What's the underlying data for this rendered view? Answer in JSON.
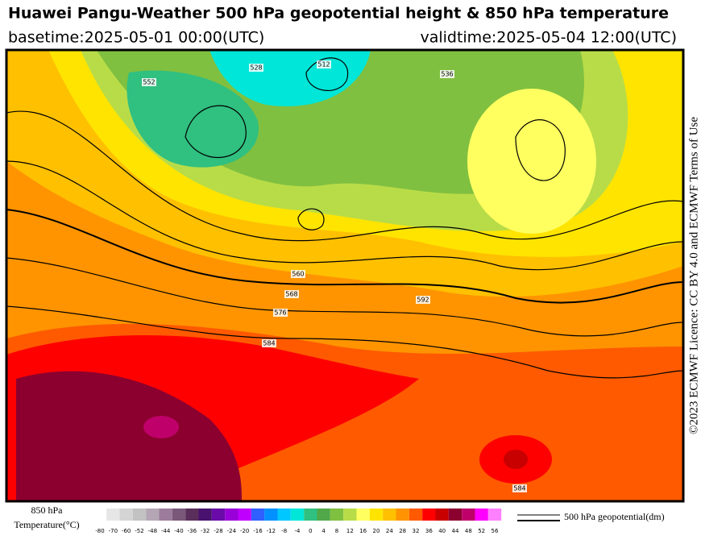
{
  "header": {
    "title": "Huawei Pangu-Weather 500 hPa geopotential height & 850 hPa temperature",
    "basetime": "basetime:2025-05-01 00:00(UTC)",
    "validtime": "validtime:2025-05-04 12:00(UTC)"
  },
  "licence": "©2023 ECMWF Licence: CC BY 4.0 and ECMWF Terms of Use",
  "legend": {
    "label_lines": [
      "850 hPa",
      "Temperature(°C)"
    ],
    "ticks": [
      -80,
      -70,
      -60,
      -52,
      -48,
      -44,
      -40,
      -36,
      -32,
      -28,
      -24,
      -20,
      -16,
      -12,
      -8,
      -4,
      0,
      4,
      8,
      12,
      16,
      20,
      24,
      28,
      32,
      36,
      40,
      44,
      48,
      52,
      56
    ],
    "colors": [
      "#e6e6e6",
      "#d4d4d4",
      "#c2c2c2",
      "#b4a6b4",
      "#9c7c9c",
      "#7a587a",
      "#5a2e5a",
      "#48126e",
      "#6a0aa8",
      "#9a00d8",
      "#c000ff",
      "#3060ff",
      "#0090ff",
      "#00c8ff",
      "#00e6d8",
      "#30c080",
      "#50a848",
      "#80c040",
      "#b8dc48",
      "#ffff60",
      "#ffe400",
      "#ffc000",
      "#ff9400",
      "#ff5a00",
      "#ff0000",
      "#c80000",
      "#8c0030",
      "#c0006a",
      "#ff00ff",
      "#ff80ff"
    ],
    "contour_label": "500 hPa geopotential(dm)"
  },
  "contour_labels": [
    "512",
    "528",
    "536",
    "552",
    "560",
    "568",
    "576",
    "584",
    "584",
    "592"
  ]
}
